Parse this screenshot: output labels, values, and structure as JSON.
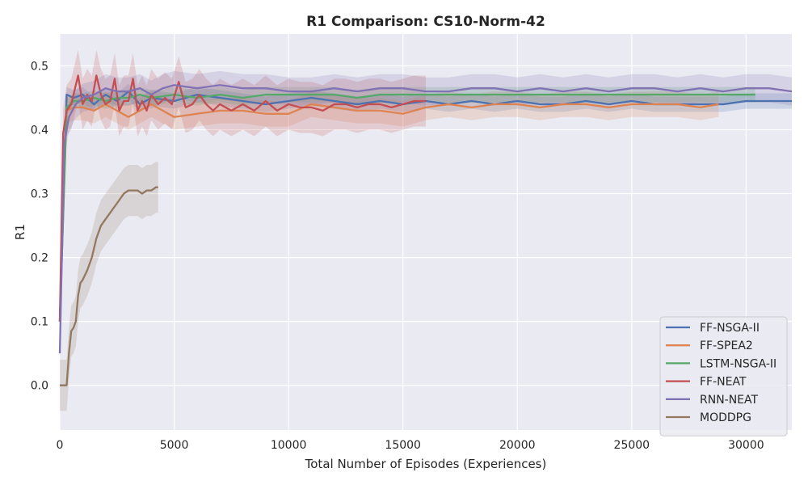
{
  "chart_data": {
    "type": "line",
    "title": "R1 Comparison: CS10-Norm-42",
    "xlabel": "Total Number of Episodes (Experiences)",
    "ylabel": "R1",
    "xlim": [
      0,
      32000
    ],
    "ylim": [
      -0.07,
      0.55
    ],
    "xticks": [
      0,
      5000,
      10000,
      15000,
      20000,
      25000,
      30000
    ],
    "yticks": [
      0.0,
      0.1,
      0.2,
      0.3,
      0.4,
      0.5
    ],
    "xtick_labels": [
      "0",
      "5000",
      "10000",
      "15000",
      "20000",
      "25000",
      "30000"
    ],
    "ytick_labels": [
      "0.0",
      "0.1",
      "0.2",
      "0.3",
      "0.4",
      "0.5"
    ],
    "grid": true,
    "legend_position": "lower-right",
    "background_color": "#eaeaf2",
    "series": [
      {
        "name": "FF-NSGA-II",
        "color": "#4c72b0",
        "x": [
          0,
          300,
          600,
          1000,
          1500,
          2000,
          2500,
          3000,
          3500,
          4000,
          5000,
          6000,
          7000,
          8000,
          9000,
          10000,
          11000,
          12000,
          13000,
          14000,
          15000,
          16000,
          17000,
          18000,
          19000,
          20000,
          21000,
          22000,
          23000,
          24000,
          25000,
          26000,
          27000,
          28000,
          29000,
          30000,
          31000,
          32000
        ],
        "values": [
          0.1,
          0.455,
          0.45,
          0.455,
          0.44,
          0.455,
          0.445,
          0.46,
          0.44,
          0.45,
          0.445,
          0.455,
          0.45,
          0.445,
          0.44,
          0.445,
          0.45,
          0.445,
          0.44,
          0.445,
          0.44,
          0.445,
          0.44,
          0.445,
          0.44,
          0.445,
          0.44,
          0.44,
          0.445,
          0.44,
          0.445,
          0.44,
          0.44,
          0.44,
          0.44,
          0.445,
          0.445,
          0.445
        ],
        "band": 0.012
      },
      {
        "name": "FF-SPEA2",
        "color": "#dd8452",
        "x": [
          0,
          300,
          600,
          1000,
          1500,
          2000,
          2500,
          3000,
          3500,
          4000,
          5000,
          6000,
          7000,
          8000,
          9000,
          10000,
          11000,
          12000,
          13000,
          14000,
          15000,
          16000,
          17000,
          18000,
          19000,
          20000,
          21000,
          22000,
          23000,
          24000,
          25000,
          26000,
          27000,
          28000,
          28800
        ],
        "values": [
          0.1,
          0.43,
          0.435,
          0.435,
          0.43,
          0.44,
          0.43,
          0.42,
          0.43,
          0.44,
          0.42,
          0.425,
          0.43,
          0.43,
          0.425,
          0.425,
          0.44,
          0.435,
          0.43,
          0.43,
          0.425,
          0.435,
          0.44,
          0.435,
          0.44,
          0.44,
          0.435,
          0.44,
          0.44,
          0.435,
          0.44,
          0.44,
          0.44,
          0.435,
          0.44
        ],
        "band": 0.02
      },
      {
        "name": "LSTM-NSGA-II",
        "color": "#55a868",
        "x": [
          0,
          300,
          600,
          1000,
          1500,
          2000,
          2500,
          3000,
          3500,
          4000,
          5000,
          6000,
          7000,
          8000,
          9000,
          10000,
          11000,
          12000,
          13000,
          14000,
          15000,
          16000,
          17000,
          18000,
          19000,
          20000,
          21000,
          22000,
          23000,
          24000,
          25000,
          26000,
          27000,
          28000,
          29000,
          30000,
          30400
        ],
        "values": [
          0.1,
          0.435,
          0.445,
          0.445,
          0.45,
          0.445,
          0.45,
          0.45,
          0.455,
          0.45,
          0.455,
          0.45,
          0.455,
          0.45,
          0.455,
          0.455,
          0.455,
          0.455,
          0.45,
          0.455,
          0.455,
          0.455,
          0.455,
          0.455,
          0.455,
          0.455,
          0.455,
          0.455,
          0.455,
          0.455,
          0.455,
          0.455,
          0.455,
          0.455,
          0.455,
          0.455,
          0.455
        ],
        "band": 0.012
      },
      {
        "name": "FF-NEAT",
        "color": "#c44e52",
        "x": [
          0,
          150,
          300,
          500,
          800,
          1000,
          1200,
          1400,
          1600,
          1800,
          2000,
          2200,
          2400,
          2600,
          2800,
          3000,
          3200,
          3400,
          3600,
          3800,
          4000,
          4300,
          4600,
          4900,
          5200,
          5500,
          5800,
          6100,
          6400,
          6700,
          7000,
          7500,
          8000,
          8500,
          9000,
          9500,
          10000,
          10500,
          11000,
          11500,
          12000,
          12500,
          13000,
          13500,
          14000,
          14500,
          15000,
          15500,
          16000
        ],
        "values": [
          0.1,
          0.395,
          0.43,
          0.44,
          0.485,
          0.44,
          0.455,
          0.445,
          0.485,
          0.455,
          0.44,
          0.445,
          0.48,
          0.43,
          0.445,
          0.445,
          0.48,
          0.43,
          0.445,
          0.43,
          0.455,
          0.44,
          0.45,
          0.44,
          0.475,
          0.435,
          0.44,
          0.455,
          0.44,
          0.43,
          0.44,
          0.43,
          0.44,
          0.43,
          0.445,
          0.43,
          0.44,
          0.435,
          0.435,
          0.43,
          0.44,
          0.44,
          0.435,
          0.44,
          0.44,
          0.435,
          0.44,
          0.445,
          0.445
        ],
        "band": 0.04
      },
      {
        "name": "RNN-NEAT",
        "color": "#8172b3",
        "x": [
          0,
          200,
          400,
          700,
          1000,
          1500,
          2000,
          2500,
          3000,
          3500,
          4000,
          4500,
          5000,
          6000,
          7000,
          8000,
          9000,
          10000,
          11000,
          12000,
          13000,
          14000,
          15000,
          16000,
          17000,
          18000,
          19000,
          20000,
          21000,
          22000,
          23000,
          24000,
          25000,
          26000,
          27000,
          28000,
          29000,
          30000,
          31000,
          32000
        ],
        "values": [
          0.05,
          0.38,
          0.42,
          0.44,
          0.45,
          0.455,
          0.465,
          0.46,
          0.46,
          0.465,
          0.455,
          0.465,
          0.47,
          0.465,
          0.47,
          0.465,
          0.465,
          0.46,
          0.46,
          0.465,
          0.46,
          0.465,
          0.465,
          0.46,
          0.46,
          0.465,
          0.465,
          0.46,
          0.465,
          0.46,
          0.465,
          0.46,
          0.465,
          0.465,
          0.46,
          0.465,
          0.46,
          0.465,
          0.465,
          0.46
        ],
        "band": 0.022
      },
      {
        "name": "MODDPG",
        "color": "#937860",
        "x": [
          0,
          100,
          200,
          300,
          400,
          500,
          600,
          700,
          800,
          900,
          1000,
          1200,
          1400,
          1600,
          1800,
          2000,
          2200,
          2400,
          2600,
          2800,
          3000,
          3200,
          3400,
          3600,
          3800,
          4000,
          4200,
          4300
        ],
        "values": [
          0.0,
          0.0,
          0.0,
          0.0,
          0.05,
          0.085,
          0.09,
          0.1,
          0.14,
          0.16,
          0.165,
          0.18,
          0.2,
          0.23,
          0.25,
          0.26,
          0.27,
          0.28,
          0.29,
          0.3,
          0.305,
          0.305,
          0.305,
          0.3,
          0.305,
          0.305,
          0.31,
          0.31
        ],
        "band": 0.04
      }
    ]
  }
}
